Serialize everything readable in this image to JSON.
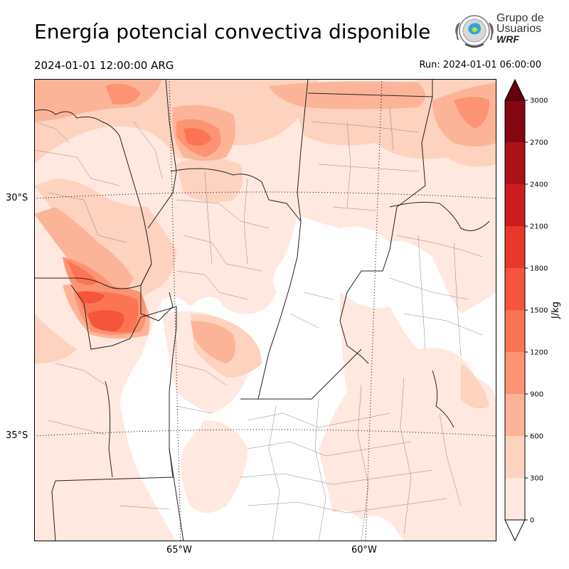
{
  "header": {
    "title": "Energía potencial convectiva disponible",
    "valid_time": "2024-01-01 12:00:00 ARG",
    "run": "Run: 2024-01-01 06:00:00"
  },
  "logo": {
    "line1": "Grupo de",
    "line2": "Usuarios",
    "line3": "WRF"
  },
  "axes": {
    "lat_labels": [
      "30°S",
      "35°S"
    ],
    "lon_labels": [
      "65°W",
      "60°W"
    ]
  },
  "colorbar": {
    "label": "J/kg",
    "ticks": [
      "0",
      "300",
      "600",
      "900",
      "1200",
      "1500",
      "1800",
      "2100",
      "2400",
      "2700",
      "3000"
    ],
    "colors": [
      "#fee8df",
      "#fdd2bf",
      "#fcb499",
      "#fc9474",
      "#fb7555",
      "#f5553c",
      "#e8382c",
      "#cb1d1e",
      "#ab1218",
      "#840711"
    ],
    "extend_min_color": "#ffffff",
    "extend_max_color": "#67000d"
  },
  "chart_data": {
    "type": "filled-contour map",
    "variable": "CAPE",
    "units": "J/kg",
    "levels": [
      0,
      300,
      600,
      900,
      1200,
      1500,
      1800,
      2100,
      2400,
      2700,
      3000
    ],
    "extend": "both"
  }
}
